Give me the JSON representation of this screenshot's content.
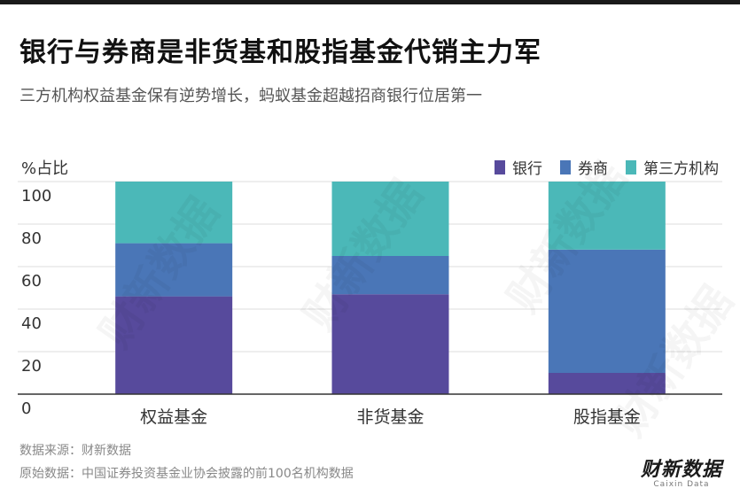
{
  "header": {
    "title": "银行与券商是非货基和股指基金代销主力军",
    "subtitle": "三方机构权益基金保有逆势增长，蚂蚁基金超越招商银行位居第一"
  },
  "footer": {
    "source": "数据来源：财新数据",
    "raw_data": "原始数据：中国证券投资基金业协会披露的前100名机构数据",
    "logo_text": "财新数据",
    "logo_sub": "Caixin Data"
  },
  "watermark": "财新数据",
  "colors": {
    "bank": "#574a9c",
    "broker": "#4a76b7",
    "third_party": "#4bb8b8",
    "grid": "#dddddd",
    "axis": "#333333"
  },
  "chart_data": {
    "type": "bar",
    "stacked": true,
    "ylabel": "%占比",
    "ylim": [
      0,
      100
    ],
    "yticks": [
      0,
      20,
      40,
      60,
      80,
      100
    ],
    "grid": true,
    "legend_position": "top-right",
    "categories": [
      "权益基金",
      "非货基金",
      "股指基金"
    ],
    "series": [
      {
        "name": "银行",
        "values": [
          46,
          47,
          10
        ]
      },
      {
        "name": "券商",
        "values": [
          25,
          18,
          58
        ]
      },
      {
        "name": "第三方机构",
        "values": [
          29,
          35,
          32
        ]
      }
    ]
  }
}
